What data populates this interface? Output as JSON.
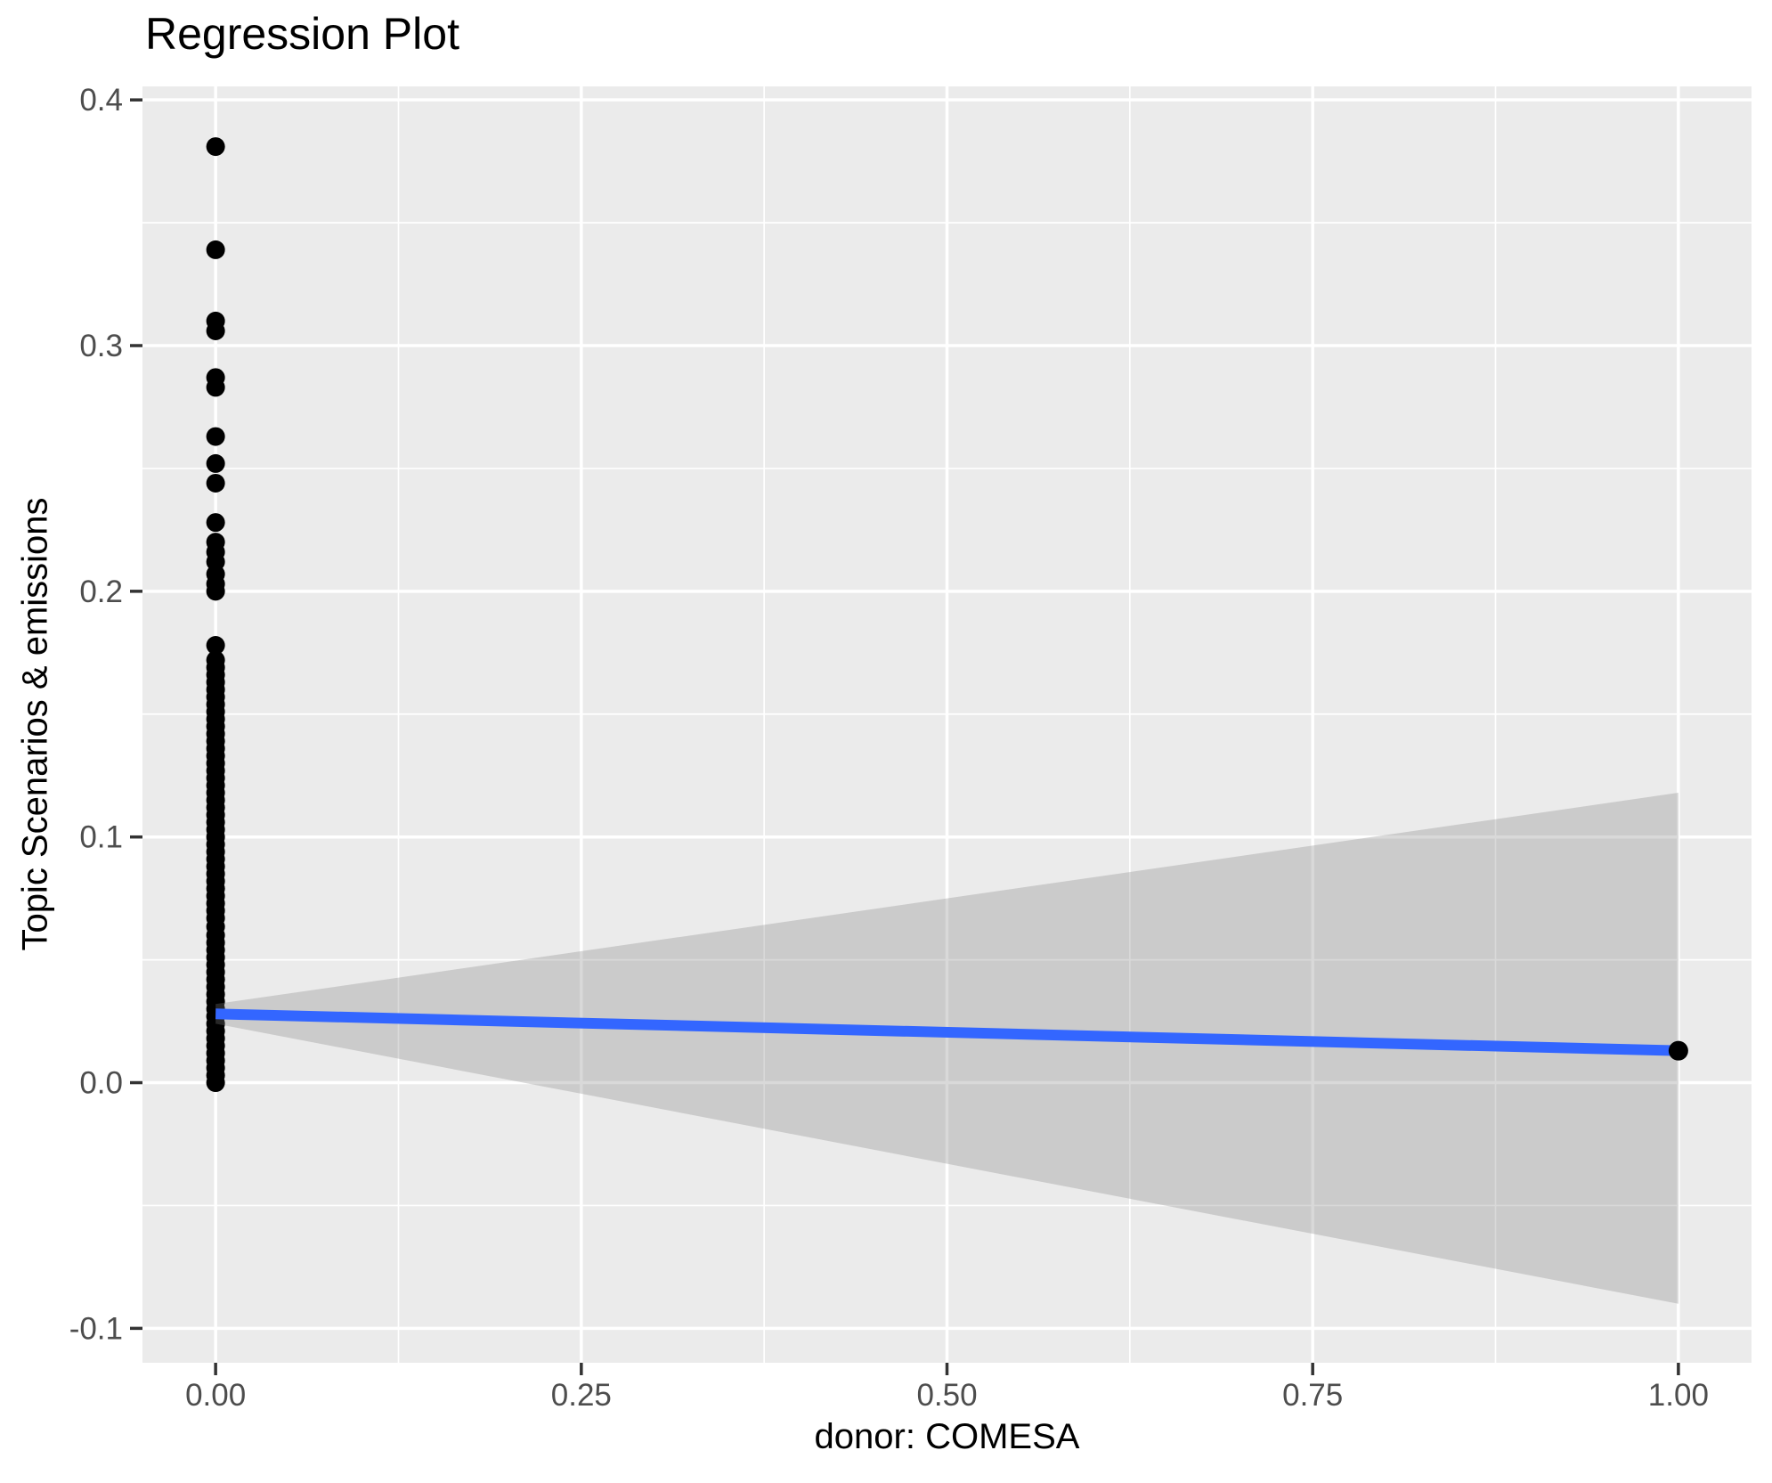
{
  "chart": {
    "title": "Regression Plot",
    "xlabel": "donor: COMESA",
    "ylabel": "Topic Scenarios & emissions"
  },
  "chart_data": {
    "type": "scatter",
    "title": "Regression Plot",
    "xlabel": "donor: COMESA",
    "ylabel": "Topic Scenarios & emissions",
    "legend": "none",
    "grid": "major-and-minor-white-on-gray-panel",
    "xlim": [
      -0.05,
      1.05
    ],
    "ylim": [
      -0.114,
      0.4055
    ],
    "x_ticks": {
      "labels": [
        "0.00",
        "0.25",
        "0.50",
        "0.75",
        "1.00"
      ],
      "values": [
        0.0,
        0.25,
        0.5,
        0.75,
        1.0
      ],
      "minor": [
        0.125,
        0.375,
        0.625,
        0.875
      ]
    },
    "y_ticks": {
      "labels": [
        "-0.1",
        "0.0",
        "0.1",
        "0.2",
        "0.3",
        "0.4"
      ],
      "values": [
        -0.1,
        0.0,
        0.1,
        0.2,
        0.3,
        0.4
      ],
      "minor": [
        -0.05,
        0.05,
        0.15,
        0.25,
        0.35
      ]
    },
    "series": [
      {
        "name": "observations-at-x0",
        "type": "points",
        "x_constant": 0.0,
        "y": [
          0.381,
          0.339,
          0.31,
          0.306,
          0.287,
          0.283,
          0.263,
          0.252,
          0.244,
          0.228,
          0.22,
          0.216,
          0.212,
          0.207,
          0.203,
          0.2,
          0.178,
          0.172,
          0.169,
          0.166,
          0.163,
          0.16,
          0.157,
          0.154,
          0.151,
          0.148,
          0.145,
          0.142,
          0.139,
          0.136,
          0.133,
          0.13,
          0.127,
          0.124,
          0.121,
          0.118,
          0.115,
          0.112,
          0.109,
          0.106,
          0.103,
          0.1,
          0.097,
          0.094,
          0.091,
          0.088,
          0.085,
          0.082,
          0.079,
          0.076,
          0.073,
          0.07,
          0.067,
          0.0635,
          0.06,
          0.057,
          0.054,
          0.051,
          0.048,
          0.045,
          0.042,
          0.039,
          0.036,
          0.033,
          0.03,
          0.027,
          0.024,
          0.021,
          0.018,
          0.015,
          0.012,
          0.009,
          0.006,
          0.003,
          0.0
        ]
      },
      {
        "name": "observation-at-x1",
        "type": "points",
        "points": [
          {
            "x": 1.0,
            "y": 0.013
          }
        ]
      },
      {
        "name": "regression-line",
        "type": "line",
        "x": [
          0.0,
          1.0
        ],
        "y": [
          0.028,
          0.013
        ]
      },
      {
        "name": "confidence-band",
        "type": "ribbon",
        "x": [
          0.0,
          1.0
        ],
        "upper": [
          0.032,
          0.118
        ],
        "lower": [
          0.024,
          -0.09
        ]
      }
    ],
    "colors": {
      "panel_background": "#EBEBEB",
      "gridline": "#FFFFFF",
      "point": "#000000",
      "regression_line": "#3366FF",
      "confidence_band": "rgba(128,128,128,0.30)",
      "tick_label": "#4D4D4D",
      "tick_mark": "#333333",
      "text": "#000000"
    }
  }
}
